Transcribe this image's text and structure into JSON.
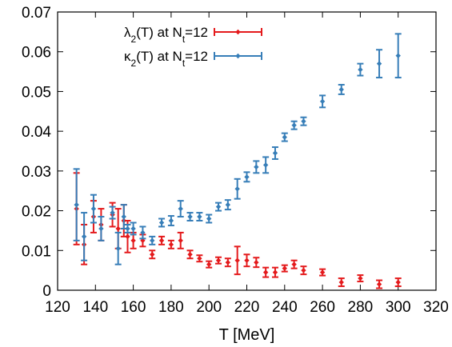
{
  "chart_data": {
    "type": "scatter",
    "xlabel": "T [MeV]",
    "ylabel": "",
    "xlim": [
      120,
      320
    ],
    "ylim": [
      0,
      0.07
    ],
    "x_ticks": [
      120,
      140,
      160,
      180,
      200,
      220,
      240,
      260,
      280,
      300,
      320
    ],
    "y_ticks": [
      0,
      0.01,
      0.02,
      0.03,
      0.04,
      0.05,
      0.06,
      0.07
    ],
    "x_tick_labels": [
      "120",
      "140",
      "160",
      "180",
      "200",
      "220",
      "240",
      "260",
      "280",
      "300",
      "320"
    ],
    "y_tick_labels": [
      "0",
      "0.01",
      "0.02",
      "0.03",
      "0.04",
      "0.05",
      "0.06",
      "0.07"
    ],
    "grid": false,
    "legend_position": "top-left",
    "series": [
      {
        "name": "λ2(T) at Nt=12",
        "legend": {
          "main": "λ",
          "sub1": "2",
          "mid": "(T) at N",
          "sub2": "t",
          "tail": "=12"
        },
        "color": "#e41a1c",
        "points": [
          {
            "x": 130,
            "y": 0.0205,
            "err": 0.009
          },
          {
            "x": 134,
            "y": 0.0115,
            "err": 0.005
          },
          {
            "x": 139,
            "y": 0.0185,
            "err": 0.004
          },
          {
            "x": 143,
            "y": 0.0165,
            "err": 0.004
          },
          {
            "x": 149,
            "y": 0.019,
            "err": 0.003
          },
          {
            "x": 152,
            "y": 0.0155,
            "err": 0.005
          },
          {
            "x": 155,
            "y": 0.0175,
            "err": 0.004
          },
          {
            "x": 157,
            "y": 0.0135,
            "err": 0.004
          },
          {
            "x": 160,
            "y": 0.0125,
            "err": 0.002
          },
          {
            "x": 165,
            "y": 0.0125,
            "err": 0.0015
          },
          {
            "x": 170,
            "y": 0.009,
            "err": 0.001
          },
          {
            "x": 175,
            "y": 0.0125,
            "err": 0.001
          },
          {
            "x": 180,
            "y": 0.0115,
            "err": 0.001
          },
          {
            "x": 185,
            "y": 0.0125,
            "err": 0.002
          },
          {
            "x": 190,
            "y": 0.009,
            "err": 0.001
          },
          {
            "x": 195,
            "y": 0.008,
            "err": 0.0008
          },
          {
            "x": 200,
            "y": 0.0065,
            "err": 0.0008
          },
          {
            "x": 205,
            "y": 0.0075,
            "err": 0.0008
          },
          {
            "x": 210,
            "y": 0.007,
            "err": 0.001
          },
          {
            "x": 215,
            "y": 0.0075,
            "err": 0.0035
          },
          {
            "x": 220,
            "y": 0.0075,
            "err": 0.0015
          },
          {
            "x": 225,
            "y": 0.007,
            "err": 0.0012
          },
          {
            "x": 230,
            "y": 0.0045,
            "err": 0.0012
          },
          {
            "x": 235,
            "y": 0.0045,
            "err": 0.0012
          },
          {
            "x": 240,
            "y": 0.0055,
            "err": 0.0008
          },
          {
            "x": 245,
            "y": 0.0065,
            "err": 0.001
          },
          {
            "x": 250,
            "y": 0.005,
            "err": 0.001
          },
          {
            "x": 260,
            "y": 0.0045,
            "err": 0.0008
          },
          {
            "x": 270,
            "y": 0.002,
            "err": 0.001
          },
          {
            "x": 280,
            "y": 0.003,
            "err": 0.0008
          },
          {
            "x": 290,
            "y": 0.0015,
            "err": 0.001
          },
          {
            "x": 300,
            "y": 0.002,
            "err": 0.001
          }
        ]
      },
      {
        "name": "κ2(T) at Nt=12",
        "legend": {
          "main": "κ",
          "sub1": "2",
          "mid": "(T) at N",
          "sub2": "t",
          "tail": "=12"
        },
        "color": "#377eb8",
        "points": [
          {
            "x": 130,
            "y": 0.0215,
            "err": 0.009
          },
          {
            "x": 134,
            "y": 0.0135,
            "err": 0.006
          },
          {
            "x": 139,
            "y": 0.0205,
            "err": 0.0035
          },
          {
            "x": 143,
            "y": 0.0155,
            "err": 0.003
          },
          {
            "x": 149,
            "y": 0.0195,
            "err": 0.0015
          },
          {
            "x": 152,
            "y": 0.0105,
            "err": 0.004
          },
          {
            "x": 155,
            "y": 0.0185,
            "err": 0.003
          },
          {
            "x": 157,
            "y": 0.0155,
            "err": 0.001
          },
          {
            "x": 160,
            "y": 0.0155,
            "err": 0.0015
          },
          {
            "x": 165,
            "y": 0.0145,
            "err": 0.0015
          },
          {
            "x": 170,
            "y": 0.0125,
            "err": 0.001
          },
          {
            "x": 175,
            "y": 0.017,
            "err": 0.001
          },
          {
            "x": 180,
            "y": 0.0175,
            "err": 0.0012
          },
          {
            "x": 185,
            "y": 0.0205,
            "err": 0.002
          },
          {
            "x": 190,
            "y": 0.0185,
            "err": 0.001
          },
          {
            "x": 195,
            "y": 0.0185,
            "err": 0.001
          },
          {
            "x": 200,
            "y": 0.018,
            "err": 0.001
          },
          {
            "x": 205,
            "y": 0.021,
            "err": 0.001
          },
          {
            "x": 210,
            "y": 0.0215,
            "err": 0.0012
          },
          {
            "x": 215,
            "y": 0.0255,
            "err": 0.0025
          },
          {
            "x": 220,
            "y": 0.0285,
            "err": 0.0012
          },
          {
            "x": 225,
            "y": 0.031,
            "err": 0.0015
          },
          {
            "x": 230,
            "y": 0.0315,
            "err": 0.002
          },
          {
            "x": 235,
            "y": 0.0345,
            "err": 0.0015
          },
          {
            "x": 240,
            "y": 0.0385,
            "err": 0.001
          },
          {
            "x": 245,
            "y": 0.0415,
            "err": 0.001
          },
          {
            "x": 250,
            "y": 0.0425,
            "err": 0.001
          },
          {
            "x": 260,
            "y": 0.0475,
            "err": 0.0015
          },
          {
            "x": 270,
            "y": 0.0505,
            "err": 0.0012
          },
          {
            "x": 280,
            "y": 0.0555,
            "err": 0.0015
          },
          {
            "x": 290,
            "y": 0.057,
            "err": 0.0035
          },
          {
            "x": 300,
            "y": 0.059,
            "err": 0.0055
          }
        ]
      }
    ]
  }
}
